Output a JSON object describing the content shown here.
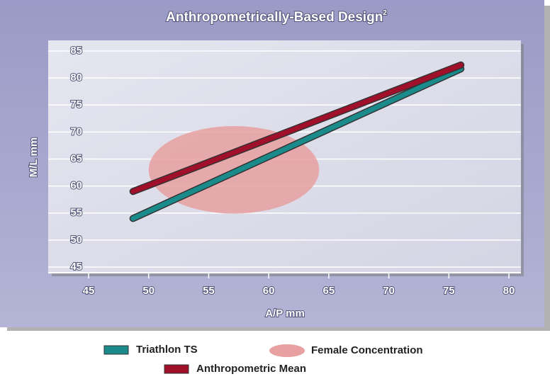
{
  "chart_data": {
    "type": "line",
    "title": "Anthropometrically-Based Design",
    "title_note": "2",
    "x_label": "A/P mm",
    "y_label": "M/L mm",
    "x": [
      48.7,
      76
    ],
    "series": [
      {
        "name": "Triathlon TS",
        "color": "#1a8a8a",
        "values": [
          54,
          81.7
        ]
      },
      {
        "name": "Anthropometric Mean",
        "color": "#a0102a",
        "values": [
          59,
          82.4
        ]
      }
    ],
    "regions": [
      {
        "name": "Female Concentration",
        "color": "#e8a0a0",
        "center": [
          57.1,
          63
        ],
        "radius": [
          7.1,
          8.1
        ]
      }
    ],
    "xlim": [
      45,
      80
    ],
    "xticks": [
      45,
      50,
      55,
      60,
      65,
      70,
      75,
      80
    ],
    "ylim": [
      45,
      85
    ],
    "yticks": [
      45,
      50,
      55,
      60,
      65,
      70,
      75,
      80,
      85
    ],
    "grid": true
  }
}
